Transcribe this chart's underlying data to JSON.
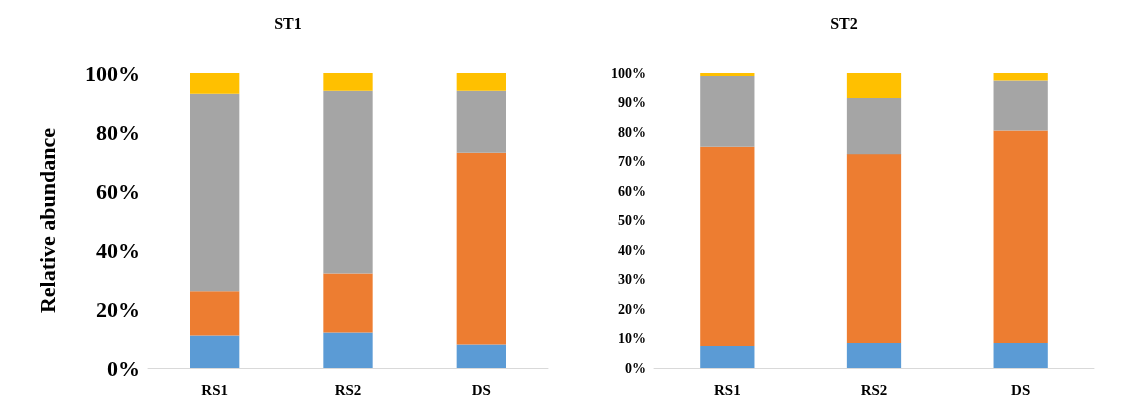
{
  "chart_data": [
    {
      "type": "bar",
      "stacked": true,
      "title": "ST1",
      "ylabel": "Relative abundance",
      "categories": [
        "RS1",
        "RS2",
        "DS"
      ],
      "ylim": [
        0,
        100
      ],
      "yticks": [
        {
          "value": 0,
          "label": "0%"
        },
        {
          "value": 20,
          "label": "20%"
        },
        {
          "value": 40,
          "label": "40%"
        },
        {
          "value": 60,
          "label": "60%"
        },
        {
          "value": 80,
          "label": "80%"
        },
        {
          "value": 100,
          "label": "100%"
        }
      ],
      "grid": false,
      "series": [
        {
          "color": "#5b9bd5",
          "values": [
            11,
            12,
            8
          ]
        },
        {
          "color": "#ed7d31",
          "values": [
            15,
            20,
            65
          ]
        },
        {
          "color": "#a5a5a5",
          "values": [
            67,
            62,
            21
          ]
        },
        {
          "color": "#ffc000",
          "values": [
            7,
            6,
            6
          ]
        }
      ]
    },
    {
      "type": "bar",
      "stacked": true,
      "title": "ST2",
      "categories": [
        "RS1",
        "RS2",
        "DS"
      ],
      "ylim": [
        0,
        100
      ],
      "yticks": [
        {
          "value": 0,
          "label": "0%"
        },
        {
          "value": 10,
          "label": "10%"
        },
        {
          "value": 20,
          "label": "20%"
        },
        {
          "value": 30,
          "label": "30%"
        },
        {
          "value": 40,
          "label": "40%"
        },
        {
          "value": 50,
          "label": "50%"
        },
        {
          "value": 60,
          "label": "60%"
        },
        {
          "value": 70,
          "label": "70%"
        },
        {
          "value": 80,
          "label": "80%"
        },
        {
          "value": 90,
          "label": "90%"
        },
        {
          "value": 100,
          "label": "100%"
        }
      ],
      "grid": false,
      "series": [
        {
          "color": "#5b9bd5",
          "values": [
            7.5,
            8.5,
            8.5
          ]
        },
        {
          "color": "#ed7d31",
          "values": [
            67.5,
            64,
            72
          ]
        },
        {
          "color": "#a5a5a5",
          "values": [
            24,
            19,
            17
          ]
        },
        {
          "color": "#ffc000",
          "values": [
            1,
            8.5,
            2.5
          ]
        }
      ]
    }
  ]
}
